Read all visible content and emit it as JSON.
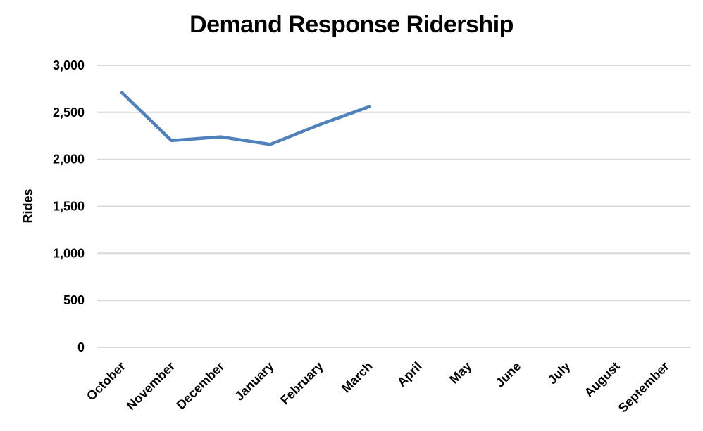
{
  "chart_data": {
    "type": "line",
    "title": "Demand Response Ridership",
    "xlabel": "",
    "ylabel": "Rides",
    "categories": [
      "October",
      "November",
      "December",
      "January",
      "February",
      "March",
      "April",
      "May",
      "June",
      "July",
      "August",
      "September"
    ],
    "series": [
      {
        "name": "Rides",
        "values": [
          2710,
          2200,
          2240,
          2160,
          2370,
          2560,
          null,
          null,
          null,
          null,
          null,
          null
        ]
      }
    ],
    "ylim": [
      0,
      3000
    ],
    "ytick_step": 500,
    "ytick_labels": [
      "0",
      "500",
      "1,000",
      "1,500",
      "2,000",
      "2,500",
      "3,000"
    ],
    "grid": true,
    "legend": false,
    "x_label_rotation_deg": -45,
    "colors": {
      "line": "#4F81BD",
      "gridline": "#D9D9D9",
      "text": "#000000",
      "background": "#FFFFFF"
    }
  }
}
